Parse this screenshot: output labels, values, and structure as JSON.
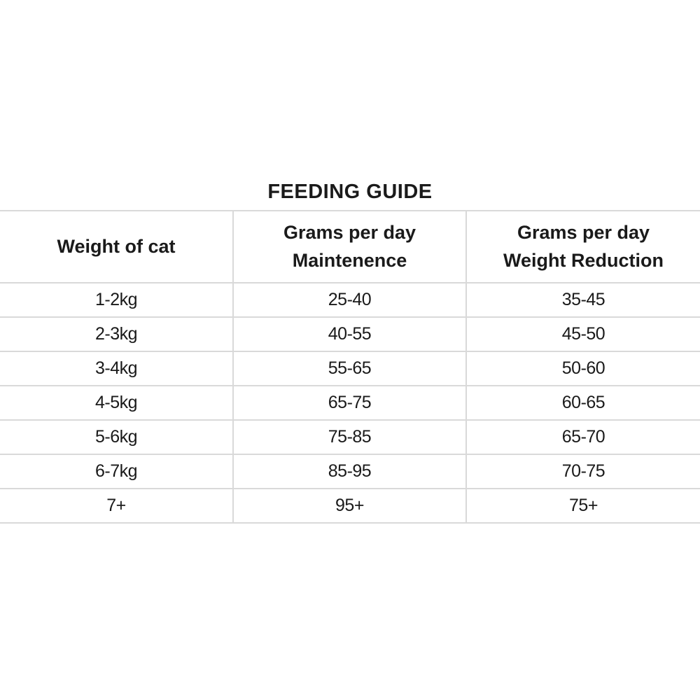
{
  "page": {
    "title": "FEEDING GUIDE"
  },
  "table": {
    "columns": [
      {
        "lines": [
          "Weight of cat"
        ]
      },
      {
        "lines": [
          "Grams per day",
          "Maintenence"
        ]
      },
      {
        "lines": [
          "Grams per day",
          "Weight Reduction"
        ]
      }
    ],
    "rows": [
      {
        "weight": "1-2kg",
        "maintenance": "25-40",
        "weight_reduction": "35-45"
      },
      {
        "weight": "2-3kg",
        "maintenance": "40-55",
        "weight_reduction": "45-50"
      },
      {
        "weight": "3-4kg",
        "maintenance": "55-65",
        "weight_reduction": "50-60"
      },
      {
        "weight": "4-5kg",
        "maintenance": "65-75",
        "weight_reduction": "60-65"
      },
      {
        "weight": "5-6kg",
        "maintenance": "75-85",
        "weight_reduction": "65-70"
      },
      {
        "weight": "6-7kg",
        "maintenance": "85-95",
        "weight_reduction": "70-75"
      },
      {
        "weight": "7+",
        "maintenance": "95+",
        "weight_reduction": "75+"
      }
    ],
    "border_color": "#d9d9d9",
    "text_color": "#1a1a1a"
  }
}
